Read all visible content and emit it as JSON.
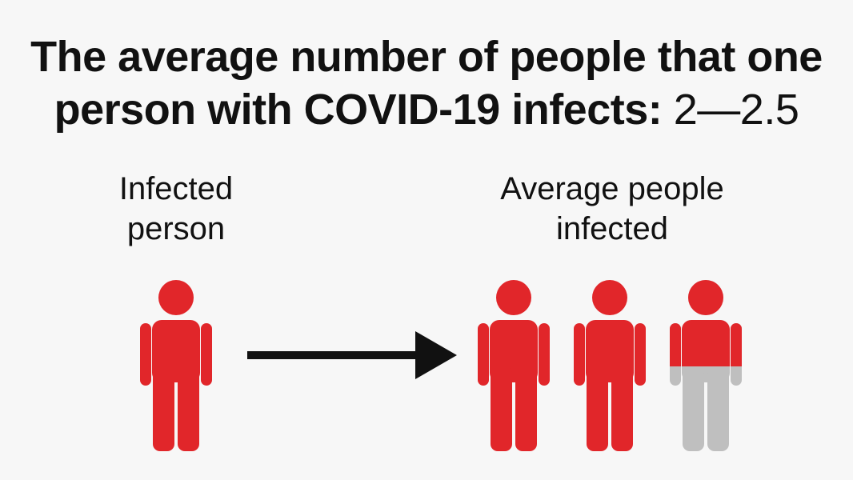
{
  "title": {
    "line1": "The average number of people that one",
    "line2_bold": "person with COVID-19 infects: ",
    "line2_value": "2—2.5"
  },
  "labels": {
    "left": [
      "Infected",
      "person"
    ],
    "right": [
      "Average people",
      "infected"
    ]
  },
  "figures": {
    "infected_color": "#e1262a",
    "uninfected_color": "#bfbfbf",
    "source_count": 1,
    "infected_people": [
      {
        "fill_fraction": 1.0
      },
      {
        "fill_fraction": 1.0
      },
      {
        "fill_fraction": 0.5
      }
    ]
  },
  "arrow": {
    "color": "#111111"
  }
}
